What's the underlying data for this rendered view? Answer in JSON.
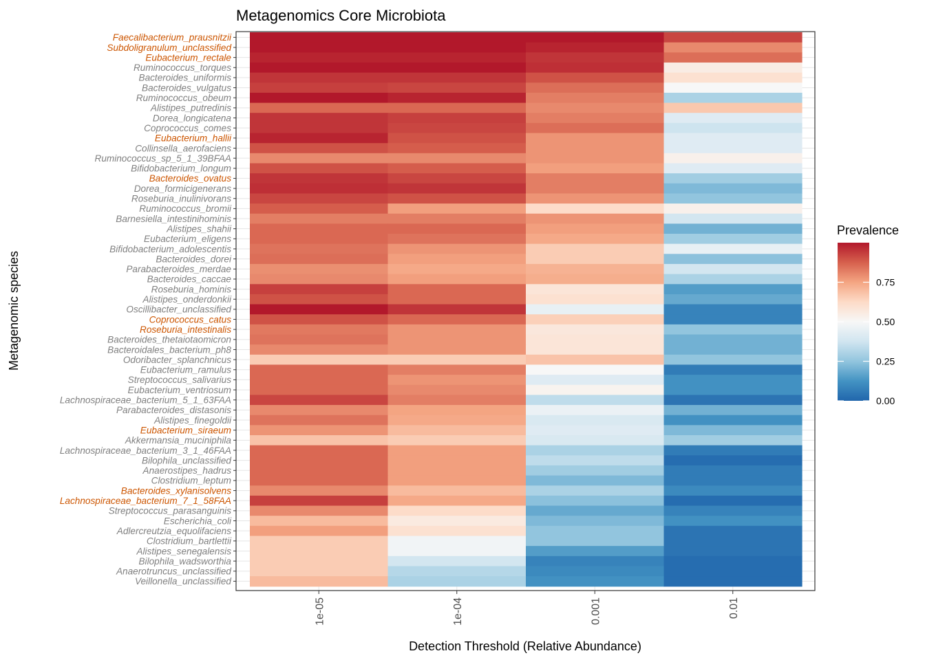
{
  "chart_data": {
    "type": "heatmap",
    "title": "Metagenomics Core Microbiota",
    "xlabel": "Detection Threshold (Relative Abundance)",
    "ylabel": "Metagenomic species",
    "x_categories": [
      "1e-05",
      "1e-04",
      "0.001",
      "0.01"
    ],
    "y_categories": [
      "Faecalibacterium_prausnitzii",
      "Subdoligranulum_unclassified",
      "Eubacterium_rectale",
      "Ruminococcus_torques",
      "Bacteroides_uniformis",
      "Bacteroides_vulgatus",
      "Ruminococcus_obeum",
      "Alistipes_putredinis",
      "Dorea_longicatena",
      "Coprococcus_comes",
      "Eubacterium_hallii",
      "Collinsella_aerofaciens",
      "Ruminococcus_sp_5_1_39BFAA",
      "Bifidobacterium_longum",
      "Bacteroides_ovatus",
      "Dorea_formicigenerans",
      "Roseburia_inulinivorans",
      "Ruminococcus_bromii",
      "Barnesiella_intestinihominis",
      "Alistipes_shahii",
      "Eubacterium_eligens",
      "Bifidobacterium_adolescentis",
      "Bacteroides_dorei",
      "Parabacteroides_merdae",
      "Bacteroides_caccae",
      "Roseburia_hominis",
      "Alistipes_onderdonkii",
      "Oscillibacter_unclassified",
      "Coprococcus_catus",
      "Roseburia_intestinalis",
      "Bacteroides_thetaiotaomicron",
      "Bacteroidales_bacterium_ph8",
      "Odoribacter_splanchnicus",
      "Eubacterium_ramulus",
      "Streptococcus_salivarius",
      "Eubacterium_ventriosum",
      "Lachnospiraceae_bacterium_5_1_63FAA",
      "Parabacteroides_distasonis",
      "Alistipes_finegoldii",
      "Eubacterium_siraeum",
      "Akkermansia_muciniphila",
      "Lachnospiraceae_bacterium_3_1_46FAA",
      "Bilophila_unclassified",
      "Anaerostipes_hadrus",
      "Clostridium_leptum",
      "Bacteroides_xylanisolvens",
      "Lachnospiraceae_bacterium_7_1_58FAA",
      "Streptococcus_parasanguinis",
      "Escherichia_coli",
      "Adlercreutzia_equolifaciens",
      "Clostridium_bartlettii",
      "Alistipes_senegalensis",
      "Bilophila_wadsworthia",
      "Anaerotruncus_unclassified",
      "Veillonella_unclassified"
    ],
    "highlighted_species": [
      "Faecalibacterium_prausnitzii",
      "Subdoligranulum_unclassified",
      "Eubacterium_rectale",
      "Eubacterium_hallii",
      "Bacteroides_ovatus",
      "Coprococcus_catus",
      "Roseburia_intestinalis",
      "Eubacterium_siraeum",
      "Bacteroides_xylanisolvens",
      "Lachnospiraceae_bacterium_7_1_58FAA"
    ],
    "values": [
      [
        1.0,
        1.0,
        1.0,
        0.92
      ],
      [
        1.0,
        1.0,
        0.98,
        0.8
      ],
      [
        0.98,
        0.98,
        0.95,
        0.85
      ],
      [
        1.0,
        1.0,
        0.96,
        0.55
      ],
      [
        0.95,
        0.95,
        0.9,
        0.6
      ],
      [
        0.93,
        0.92,
        0.85,
        0.5
      ],
      [
        1.0,
        0.98,
        0.82,
        0.3
      ],
      [
        0.86,
        0.86,
        0.8,
        0.67
      ],
      [
        0.95,
        0.93,
        0.82,
        0.42
      ],
      [
        0.95,
        0.92,
        0.85,
        0.37
      ],
      [
        0.98,
        0.9,
        0.78,
        0.42
      ],
      [
        0.9,
        0.88,
        0.78,
        0.42
      ],
      [
        0.8,
        0.8,
        0.78,
        0.53
      ],
      [
        0.9,
        0.88,
        0.76,
        0.42
      ],
      [
        0.95,
        0.92,
        0.82,
        0.28
      ],
      [
        0.96,
        0.95,
        0.82,
        0.22
      ],
      [
        0.92,
        0.9,
        0.78,
        0.25
      ],
      [
        0.88,
        0.76,
        0.62,
        0.53
      ],
      [
        0.82,
        0.82,
        0.78,
        0.38
      ],
      [
        0.86,
        0.86,
        0.76,
        0.2
      ],
      [
        0.86,
        0.84,
        0.74,
        0.28
      ],
      [
        0.84,
        0.78,
        0.66,
        0.45
      ],
      [
        0.85,
        0.76,
        0.66,
        0.24
      ],
      [
        0.79,
        0.74,
        0.72,
        0.38
      ],
      [
        0.8,
        0.76,
        0.73,
        0.3
      ],
      [
        0.93,
        0.86,
        0.58,
        0.15
      ],
      [
        0.9,
        0.86,
        0.6,
        0.18
      ],
      [
        1.0,
        0.95,
        0.45,
        0.08
      ],
      [
        0.9,
        0.86,
        0.65,
        0.08
      ],
      [
        0.83,
        0.78,
        0.57,
        0.25
      ],
      [
        0.84,
        0.78,
        0.58,
        0.2
      ],
      [
        0.8,
        0.78,
        0.58,
        0.2
      ],
      [
        0.66,
        0.66,
        0.68,
        0.25
      ],
      [
        0.86,
        0.82,
        0.5,
        0.06
      ],
      [
        0.86,
        0.78,
        0.42,
        0.12
      ],
      [
        0.86,
        0.8,
        0.52,
        0.12
      ],
      [
        0.92,
        0.82,
        0.34,
        0.04
      ],
      [
        0.8,
        0.75,
        0.46,
        0.2
      ],
      [
        0.84,
        0.74,
        0.4,
        0.12
      ],
      [
        0.78,
        0.7,
        0.42,
        0.22
      ],
      [
        0.68,
        0.66,
        0.4,
        0.28
      ],
      [
        0.86,
        0.76,
        0.3,
        0.06
      ],
      [
        0.86,
        0.76,
        0.34,
        0.02
      ],
      [
        0.86,
        0.76,
        0.28,
        0.06
      ],
      [
        0.86,
        0.76,
        0.22,
        0.06
      ],
      [
        0.8,
        0.7,
        0.3,
        0.1
      ],
      [
        0.93,
        0.74,
        0.24,
        0.02
      ],
      [
        0.8,
        0.62,
        0.18,
        0.08
      ],
      [
        0.7,
        0.56,
        0.22,
        0.12
      ],
      [
        0.76,
        0.6,
        0.25,
        0.04
      ],
      [
        0.66,
        0.48,
        0.25,
        0.04
      ],
      [
        0.66,
        0.48,
        0.15,
        0.04
      ],
      [
        0.66,
        0.38,
        0.08,
        0.02
      ],
      [
        0.66,
        0.32,
        0.1,
        0.02
      ],
      [
        0.7,
        0.3,
        0.12,
        0.02
      ]
    ],
    "colorbar": {
      "title": "Prevalence",
      "ticks": [
        0.0,
        0.25,
        0.5,
        0.75
      ],
      "tick_labels": [
        "0.00",
        "0.25",
        "0.50",
        "0.75"
      ],
      "range": [
        0,
        1
      ],
      "colors": [
        "#2166ac",
        "#4393c3",
        "#92c5de",
        "#d1e5f0",
        "#f7f7f7",
        "#fddbc7",
        "#f4a582",
        "#d6604d",
        "#b2182b"
      ]
    },
    "label_colors": {
      "default": "#7f7f7f",
      "highlight": "#cc5500"
    },
    "grid": true,
    "legend_position": "right"
  }
}
